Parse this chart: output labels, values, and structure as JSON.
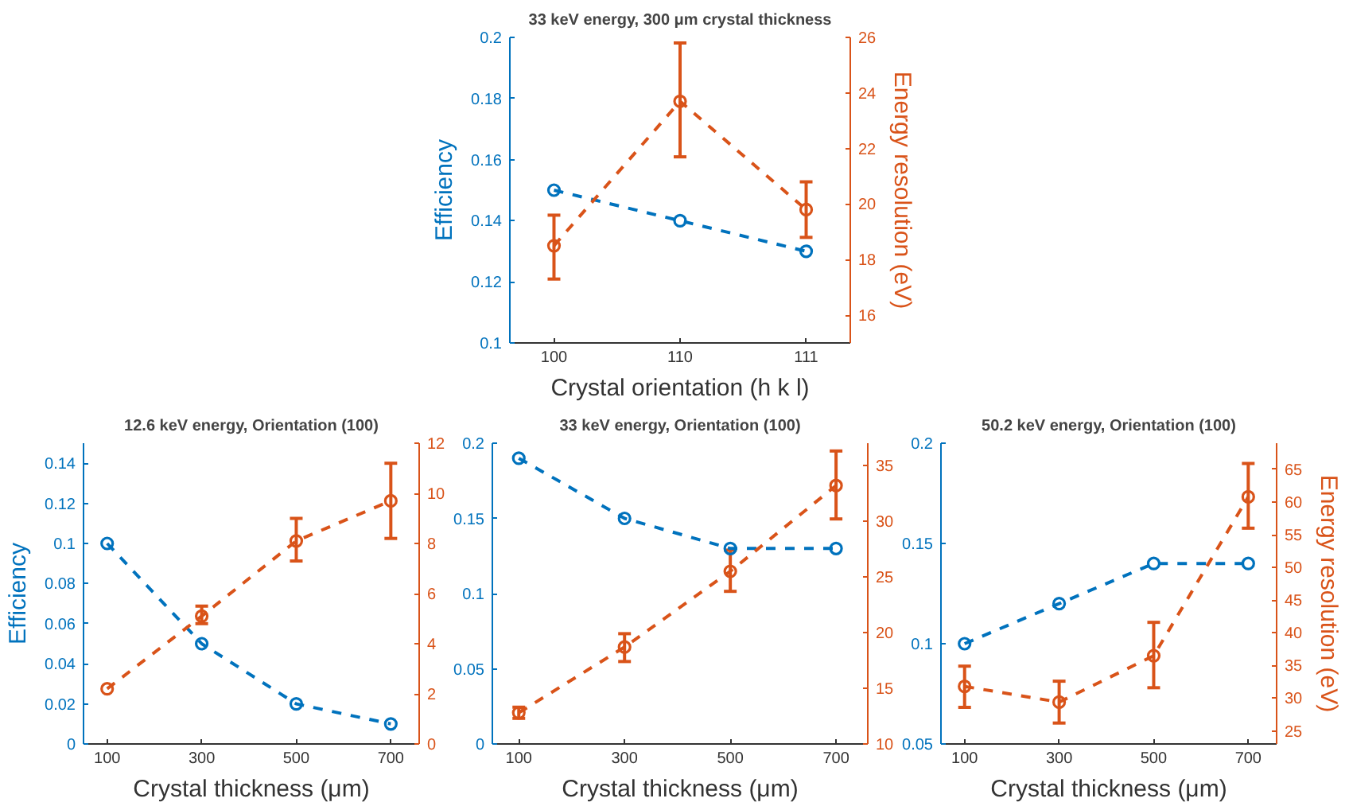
{
  "chart_data": [
    {
      "type": "line",
      "title": "33 keV energy, 300 μm crystal thickness",
      "xlabel": "Crystal orientation (h k l)",
      "ylabel": "Efficiency",
      "y2label": "Energy resolution (eV)",
      "categories": [
        "100",
        "110",
        "111"
      ],
      "ylim": [
        0.1,
        0.2
      ],
      "yticks": [
        0.1,
        0.12,
        0.14,
        0.16,
        0.18,
        0.2
      ],
      "y2lim": [
        15,
        26
      ],
      "y2ticks": [
        16,
        18,
        20,
        22,
        24,
        26
      ],
      "marker": "circle",
      "line_style": "dashed",
      "series": [
        {
          "color": "#0072bd",
          "values": [
            0.15,
            0.14,
            0.13
          ]
        },
        {
          "color": "#d95319",
          "axis": "y2",
          "values": [
            18.5,
            23.7,
            19.8
          ],
          "errors": [
            [
              17.3,
              19.6
            ],
            [
              21.7,
              25.8
            ],
            [
              18.8,
              20.8
            ]
          ]
        }
      ]
    },
    {
      "type": "line",
      "title": "12.6 keV energy, Orientation (100)",
      "xlabel": "Crystal thickness (μm)",
      "ylabel": "Efficiency",
      "x": [
        100,
        300,
        500,
        700
      ],
      "xlim": [
        50,
        760
      ],
      "xticks": [
        100,
        300,
        500,
        700
      ],
      "ylim": [
        0,
        0.15
      ],
      "yticks": [
        0,
        0.02,
        0.04,
        0.06,
        0.08,
        0.1,
        0.12,
        0.14
      ],
      "y2lim": [
        0,
        12
      ],
      "y2ticks": [
        0,
        2,
        4,
        6,
        8,
        10,
        12
      ],
      "marker": "circle",
      "line_style": "dashed",
      "series": [
        {
          "color": "#0072bd",
          "values": [
            0.1,
            0.05,
            0.02,
            0.01
          ]
        },
        {
          "color": "#d95319",
          "axis": "y2",
          "values": [
            2.2,
            5.1,
            8.1,
            9.7
          ],
          "errors": [
            null,
            [
              4.8,
              5.5
            ],
            [
              7.3,
              9.0
            ],
            [
              8.2,
              11.2
            ]
          ]
        }
      ]
    },
    {
      "type": "line",
      "title": "33 keV energy, Orientation (100)",
      "xlabel": "Crystal thickness (μm)",
      "x": [
        100,
        300,
        500,
        700
      ],
      "xlim": [
        50,
        760
      ],
      "xticks": [
        100,
        300,
        500,
        700
      ],
      "ylim": [
        0,
        0.2
      ],
      "yticks": [
        0,
        0.05,
        0.1,
        0.15,
        0.2
      ],
      "y2lim": [
        10,
        37
      ],
      "y2ticks": [
        10,
        15,
        20,
        25,
        30,
        35
      ],
      "marker": "circle",
      "line_style": "dashed",
      "series": [
        {
          "color": "#0072bd",
          "values": [
            0.19,
            0.15,
            0.13,
            0.13
          ]
        },
        {
          "color": "#d95319",
          "axis": "y2",
          "values": [
            12.8,
            18.7,
            25.5,
            33.2
          ],
          "errors": [
            [
              12.3,
              13.3
            ],
            [
              17.4,
              19.9
            ],
            [
              23.7,
              27.4
            ],
            [
              30.2,
              36.3
            ]
          ]
        }
      ]
    },
    {
      "type": "line",
      "title": "50.2 keV energy, Orientation (100)",
      "xlabel": "Crystal thickness (μm)",
      "y2label": "Energy resolution (eV)",
      "x": [
        100,
        300,
        500,
        700
      ],
      "xlim": [
        50,
        760
      ],
      "xticks": [
        100,
        300,
        500,
        700
      ],
      "ylim": [
        0.05,
        0.2
      ],
      "yticks": [
        0.05,
        0.1,
        0.15,
        0.2
      ],
      "y2lim": [
        23,
        69
      ],
      "y2ticks": [
        25,
        30,
        35,
        40,
        45,
        50,
        55,
        60,
        65
      ],
      "marker": "circle",
      "line_style": "dashed",
      "series": [
        {
          "color": "#0072bd",
          "values": [
            0.1,
            0.12,
            0.14,
            0.14
          ]
        },
        {
          "color": "#d95319",
          "axis": "y2",
          "values": [
            31.8,
            29.4,
            36.5,
            60.8
          ],
          "errors": [
            [
              28.6,
              34.9
            ],
            [
              26.2,
              32.6
            ],
            [
              31.6,
              41.6
            ],
            [
              56.0,
              65.9
            ]
          ]
        }
      ]
    }
  ]
}
